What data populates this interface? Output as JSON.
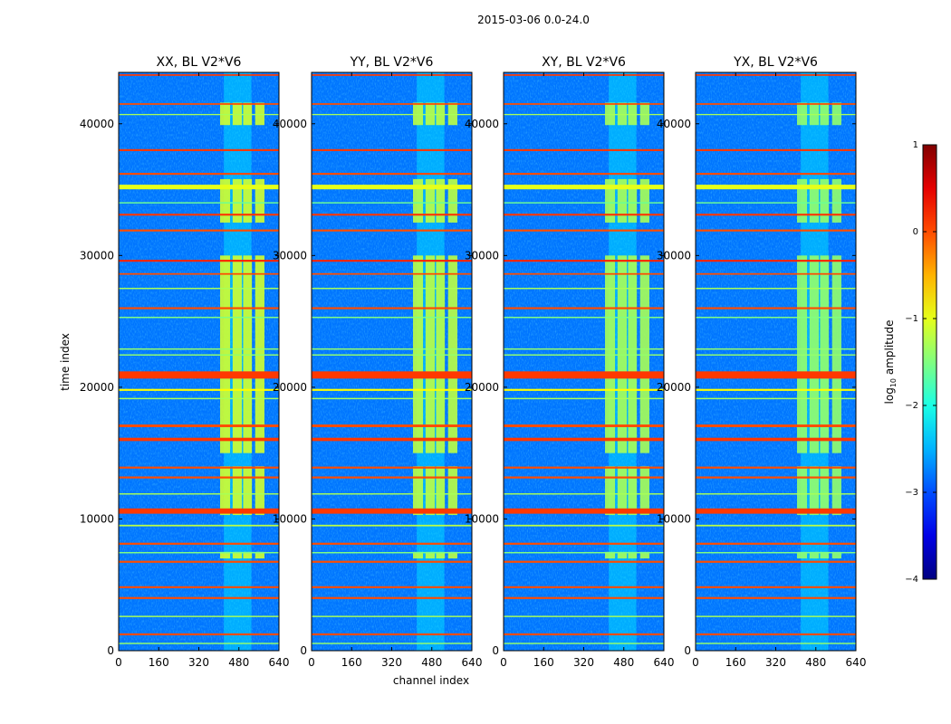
{
  "chart_data": {
    "type": "heatmap",
    "title": "2015-03-06 0.0-24.0",
    "xlabel": "channel index",
    "ylabel": "time index",
    "xlim": [
      0,
      640
    ],
    "ylim": [
      0,
      43900
    ],
    "xticks": [
      0,
      160,
      320,
      480,
      640
    ],
    "yticks": [
      0,
      10000,
      20000,
      30000,
      40000
    ],
    "panels": [
      {
        "title": "XX, BL V2*V6",
        "block_level": -1.1
      },
      {
        "title": "YY, BL V2*V6",
        "block_level": -1.2
      },
      {
        "title": "XY, BL V2*V6",
        "block_level": -1.3
      },
      {
        "title": "YX, BL V2*V6",
        "block_level": -1.4
      }
    ],
    "background_level": -2.8,
    "faint_channel_range": {
      "start": 420,
      "end": 530,
      "level": -2.2
    },
    "channel_blocks": [
      [
        405,
        445
      ],
      [
        455,
        492
      ],
      [
        497,
        532
      ],
      [
        545,
        582
      ]
    ],
    "active_time_ranges": [
      [
        39900,
        41600
      ],
      [
        32500,
        35800
      ],
      [
        15000,
        30000
      ],
      [
        10300,
        14000
      ],
      [
        7000,
        7500
      ]
    ],
    "rfi_rows": [
      {
        "t": 43700,
        "w": 120,
        "level": 0.1
      },
      {
        "t": 41500,
        "w": 120,
        "level": 0.0
      },
      {
        "t": 40700,
        "w": 80,
        "level": -1.3
      },
      {
        "t": 38000,
        "w": 150,
        "level": 0.1
      },
      {
        "t": 36200,
        "w": 150,
        "level": 0.0
      },
      {
        "t": 35200,
        "w": 350,
        "level": -1.0
      },
      {
        "t": 34000,
        "w": 100,
        "level": -1.6
      },
      {
        "t": 33100,
        "w": 150,
        "level": 0.1
      },
      {
        "t": 31900,
        "w": 150,
        "level": 0.0
      },
      {
        "t": 29600,
        "w": 150,
        "level": 0.2
      },
      {
        "t": 28600,
        "w": 120,
        "level": 0.0
      },
      {
        "t": 27500,
        "w": 100,
        "level": -1.3
      },
      {
        "t": 26000,
        "w": 150,
        "level": 0.0
      },
      {
        "t": 25300,
        "w": 100,
        "level": -1.5
      },
      {
        "t": 22900,
        "w": 100,
        "level": -1.4
      },
      {
        "t": 22450,
        "w": 100,
        "level": -1.4
      },
      {
        "t": 20930,
        "w": 550,
        "level": 0.1
      },
      {
        "t": 19800,
        "w": 150,
        "level": -0.9
      },
      {
        "t": 19140,
        "w": 100,
        "level": -1.3
      },
      {
        "t": 17070,
        "w": 200,
        "level": 0.0
      },
      {
        "t": 16040,
        "w": 250,
        "level": 0.1
      },
      {
        "t": 13900,
        "w": 150,
        "level": 0.0
      },
      {
        "t": 13150,
        "w": 150,
        "level": 0.0
      },
      {
        "t": 11900,
        "w": 100,
        "level": -1.3
      },
      {
        "t": 10600,
        "w": 400,
        "level": 0.1
      },
      {
        "t": 9500,
        "w": 120,
        "level": -1.2
      },
      {
        "t": 8120,
        "w": 150,
        "level": 0.0
      },
      {
        "t": 7440,
        "w": 100,
        "level": -1.5
      },
      {
        "t": 6750,
        "w": 150,
        "level": 0.0
      },
      {
        "t": 4820,
        "w": 150,
        "level": 0.0
      },
      {
        "t": 4000,
        "w": 150,
        "level": 0.0
      },
      {
        "t": 2600,
        "w": 100,
        "level": -1.3
      },
      {
        "t": 1240,
        "w": 150,
        "level": 0.0
      },
      {
        "t": 550,
        "w": 100,
        "level": -1.4
      }
    ],
    "colorbar": {
      "label": "log10 amplitude",
      "label_base": "log",
      "label_sub": "10",
      "label_rest": " amplitude",
      "range": [
        -4,
        1
      ],
      "ticks": [
        "1",
        "0",
        "−1",
        "−2",
        "−3",
        "−4"
      ],
      "tick_values": [
        1,
        0,
        -1,
        -2,
        -3,
        -4
      ],
      "colormap": "jet"
    }
  }
}
